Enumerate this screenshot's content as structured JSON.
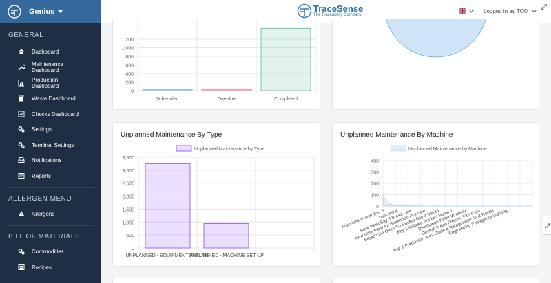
{
  "brand": {
    "name": "Genius",
    "logo_icon": "tracesense-logo-icon"
  },
  "topbar": {
    "logo_main": "TraceSense",
    "logo_tagline": "The Traceability Company",
    "user_text": "Logged in as TOM",
    "flag_icon": "uk-flag-icon"
  },
  "sidebar": {
    "sections": [
      {
        "title": "GENERAL",
        "items": [
          {
            "label": "Dashboard",
            "icon": "home-icon"
          },
          {
            "label": "Maintenance Dashboard",
            "icon": "wrench-icon"
          },
          {
            "label": "Production Dashboard",
            "icon": "bar-chart-icon"
          },
          {
            "label": "Waste Dashboard",
            "icon": "trash-icon"
          },
          {
            "label": "Checks Dashboard",
            "icon": "checkbox-icon"
          },
          {
            "label": "Settings",
            "icon": "gears-icon"
          },
          {
            "label": "Terminal Settings",
            "icon": "gears-icon"
          },
          {
            "label": "Notifications",
            "icon": "inbox-icon"
          },
          {
            "label": "Reports",
            "icon": "reports-icon"
          }
        ]
      },
      {
        "title": "ALLERGEN MENU",
        "items": [
          {
            "label": "Allergens",
            "icon": "warning-icon"
          }
        ]
      },
      {
        "title": "BILL OF MATERIALS",
        "items": [
          {
            "label": "Commodities",
            "icon": "gears-icon"
          },
          {
            "label": "Recipes",
            "icon": "list-icon"
          }
        ]
      }
    ]
  },
  "charts": {
    "status": {
      "type": "bar",
      "categories": [
        "Scheduled",
        "Overdue",
        "Completed"
      ],
      "values": [
        30,
        30,
        1450
      ],
      "y_ticks": [
        "1,200",
        "1,000",
        "800",
        "600",
        "400",
        "200",
        "0"
      ],
      "colors": [
        "#5ab1dd",
        "#ff6b8a",
        "#6cc4a4"
      ]
    },
    "pie": {
      "type": "pie",
      "values": [
        1440,
        15,
        10
      ],
      "colors": [
        "#cfe4f7",
        "#ff6b8a",
        "#b0b0b0"
      ]
    },
    "by_type": {
      "type": "bar",
      "title": "Unplanned Maintenance By Type",
      "legend": "Unplanned Maintenance by Type",
      "categories": [
        "UNPLANNED - EQUIPMENT FAILURE",
        "UNPLANNED - MACHINE SET UP"
      ],
      "values": [
        3250,
        940
      ],
      "ylim": [
        0,
        3500
      ],
      "y_ticks": [
        "3,500",
        "3,000",
        "2,500",
        "2,000",
        "1,500",
        "1,000",
        "500",
        "0"
      ],
      "color": "#9966ff"
    },
    "by_machine": {
      "type": "area",
      "title": "Unplanned Maintenance By Machine",
      "legend": "Unplanned Maintenance by Machine",
      "ylim": [
        0,
        450
      ],
      "y_ticks": [
        "400",
        "300",
        "200",
        "100",
        "0"
      ],
      "categories": [
        "Main Line Prover Bay 3",
        "Twin spiral",
        "Bowl Hoist Bay 3 Bread Line",
        "New case taper for Bloomfield Pro Line",
        "Bread Line Oven Tin Pusher Bay 3 Infeed",
        "Bay 1 Holgate Product Pump 1",
        "Distribution Pallet Wrapper",
        "Despatch And Freezer Fire Exits",
        "Bay 1 Production Area Cooling Refrigeration Unit Rental",
        "Engineering Emergency Lighting"
      ],
      "values": [
        100,
        30,
        15,
        8,
        6,
        5,
        4,
        3,
        2,
        1
      ],
      "color": "#5ab1dd"
    }
  }
}
